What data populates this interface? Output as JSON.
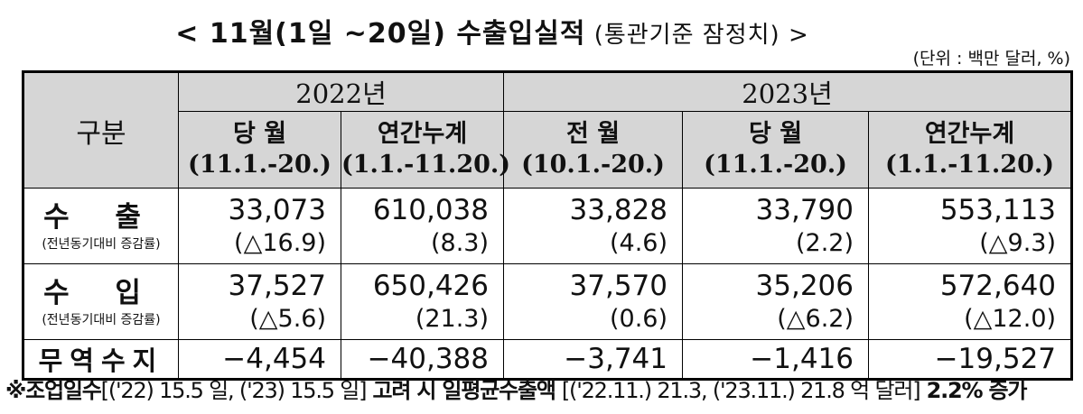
{
  "title": {
    "main": "< 11월(1일 ~20일) 수출입실적",
    "sub": " (통관기준  잠정치) >"
  },
  "unit": "(단위 : 백만  달러, %)",
  "header": {
    "gubun": "구분",
    "year2022": "2022년",
    "year2023": "2023년",
    "cols": [
      {
        "name": "당 월",
        "period": "(11.1.-20.)"
      },
      {
        "name": "연간누계",
        "period": "(1.1.-11.20.)"
      },
      {
        "name": "전 월",
        "period": "(10.1.-20.)"
      },
      {
        "name": "당 월",
        "period": "(11.1.-20.)"
      },
      {
        "name": "연간누계",
        "period": "(1.1.-11.20.)"
      }
    ]
  },
  "rows": [
    {
      "label": "수  출",
      "note": "(전년동기대비 증감률)",
      "values": [
        "33,073",
        "610,038",
        "33,828",
        "33,790",
        "553,113"
      ],
      "rates": [
        "(△16.9)",
        "(8.3)",
        "(4.6)",
        "(2.2)",
        "(△9.3)"
      ]
    },
    {
      "label": "수  입",
      "note": "(전년동기대비 증감률)",
      "values": [
        "37,527",
        "650,426",
        "37,570",
        "35,206",
        "572,640"
      ],
      "rates": [
        "(△5.6)",
        "(21.3)",
        "(0.6)",
        "(△6.2)",
        "(△12.0)"
      ]
    }
  ],
  "balance": {
    "label": "무역수지",
    "values": [
      "−4,454",
      "−40,388",
      "−3,741",
      "−1,416",
      "−19,527"
    ]
  },
  "footnote": {
    "part1": "※조업일수",
    "part2": "[('22) 15.5 일, ('23) 15.5 일]",
    "part3": " 고려 시 일평균수출액 ",
    "part4": "[('22.11.) 21.3, ('23.11.) 21.8 억 달러]",
    "part5": " 2.2% 증가"
  }
}
